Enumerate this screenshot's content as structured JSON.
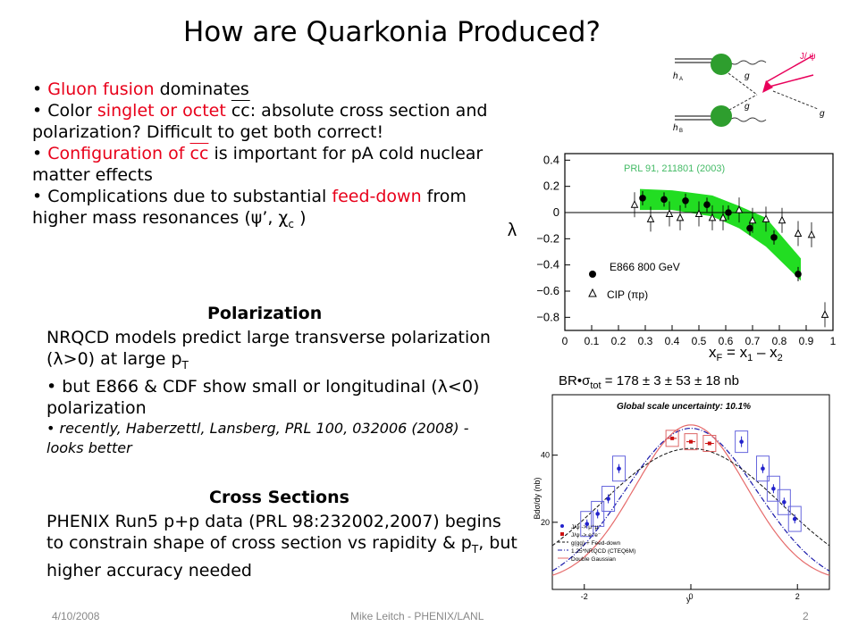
{
  "title": "How are Quarkonia Produced?",
  "bullets": {
    "b1": {
      "hl": "Gluon fusion",
      "rest": " dominates"
    },
    "b2": {
      "pre": "Color ",
      "hl": "singlet or octet",
      "cc": "cc",
      "rest": ": absolute cross section and polarization? Difficult to get both correct!"
    },
    "b3": {
      "hl": "Configuration of ",
      "cc": "cc",
      "rest": " is important for pA cold nuclear matter effects"
    },
    "b4": {
      "pre": "Complications due to substantial ",
      "hl": "feed-down",
      "rest": " from higher mass resonances (",
      "psi": "ψ’,  χ",
      "chi_sub": "c",
      "close": " )"
    }
  },
  "polarization": {
    "heading": "Polarization",
    "line1a": "NRQCD models predict large transverse polarization (",
    "lambda_gt": "λ>0) at large p",
    "sub_t": "T",
    "bullet2a": "but E866 & CDF show small or longitudinal (",
    "lambda_lt": "λ<0) polarization",
    "bullet3": "recently, Haberzettl, Lansberg, PRL 100, 032006 (2008)  - looks better"
  },
  "cross": {
    "heading": "Cross Sections",
    "text_a": "PHENIX Run5 p+p data (PRL 98:232002,2007) begins to constrain shape of cross section vs rapidity & p",
    "sub_t": "T",
    "text_b": ", but higher accuracy needed"
  },
  "footer": {
    "date": "4/10/2008",
    "author": "Mike Leitch - PHENIX/LANL",
    "page": "2"
  },
  "diagram": {
    "ha": "h",
    "ha_sub": "A",
    "hb": "h",
    "hb_sub": "B",
    "g": "g",
    "jpsi": "J/ ψ"
  },
  "chart_top": {
    "ref": "PRL 91, 211801 (2003)",
    "legend1": "E866 800 GeV",
    "legend2": "CIP (πp)",
    "ylabel": "λ",
    "xlabel": "x",
    "xlabel_sub": "F",
    "xlabel_eq": " = x",
    "x1_sub": "1",
    "xlabel_minus": " – x",
    "x2_sub": "2"
  },
  "chart_data": [
    {
      "type": "scatter",
      "xlim": [
        0,
        1
      ],
      "ylim": [
        -0.9,
        0.45
      ],
      "x_ticks": [
        "0",
        "0.1",
        "0.2",
        "0.3",
        "0.4",
        "0.5",
        "0.6",
        "0.7",
        "0.8",
        "0.9",
        "1"
      ],
      "y_ticks": [
        "0.4",
        "0.2",
        "0",
        "−0.2",
        "−0.4",
        "−0.6",
        "−0.8"
      ],
      "y_tick_values": [
        0.4,
        0.2,
        0,
        -0.2,
        -0.4,
        -0.6,
        -0.8
      ],
      "series": [
        {
          "name": "E866 800 GeV",
          "x": [
            0.29,
            0.37,
            0.45,
            0.53,
            0.61,
            0.69,
            0.78,
            0.87
          ],
          "y": [
            0.11,
            0.1,
            0.09,
            0.06,
            0.0,
            -0.12,
            -0.19,
            -0.47
          ]
        },
        {
          "name": "CIP (πp)",
          "x": [
            0.26,
            0.32,
            0.39,
            0.43,
            0.5,
            0.55,
            0.59,
            0.65,
            0.7,
            0.75,
            0.81,
            0.87,
            0.92,
            0.97
          ],
          "y": [
            0.06,
            -0.05,
            -0.01,
            -0.04,
            -0.01,
            -0.04,
            -0.04,
            0.02,
            -0.06,
            -0.05,
            -0.06,
            -0.16,
            -0.17,
            -0.78
          ]
        }
      ],
      "band_upper": [
        [
          0.28,
          0.18
        ],
        [
          0.4,
          0.17
        ],
        [
          0.55,
          0.13
        ],
        [
          0.65,
          0.05
        ],
        [
          0.75,
          -0.04
        ],
        [
          0.88,
          -0.35
        ]
      ],
      "band_lower": [
        [
          0.28,
          0.02
        ],
        [
          0.4,
          0.02
        ],
        [
          0.55,
          -0.03
        ],
        [
          0.65,
          -0.12
        ],
        [
          0.75,
          -0.26
        ],
        [
          0.88,
          -0.52
        ]
      ]
    },
    {
      "type": "scatter",
      "title": "Global scale uncertainty: 10.1%",
      "header": "BR•σ",
      "header_sub": "tot",
      "header_value": " = 178 ± 3 ± 53 ± 18 nb",
      "ylabel": "Bdσ/dy (nb)",
      "xlabel": "y",
      "xlim": [
        -2.6,
        2.6
      ],
      "ylim": [
        0,
        58
      ],
      "x_ticks": [
        "-2",
        "0",
        "2"
      ],
      "x_tick_values": [
        -2,
        0,
        2
      ],
      "y_ticks": [
        "20",
        "40"
      ],
      "y_tick_values": [
        20,
        40
      ],
      "series": [
        {
          "name": "J/ψ -> μ⁺μ⁻",
          "x": [
            -1.95,
            -1.75,
            -1.55,
            -1.35,
            1.35,
            1.55,
            1.75,
            1.95
          ],
          "y": [
            19.5,
            22.5,
            27,
            36,
            36,
            30,
            26,
            21
          ]
        },
        {
          "name": "J/ψ -> e⁺e⁻",
          "x": [
            -0.35,
            0,
            0.35
          ],
          "y": [
            45,
            44,
            43.5
          ]
        },
        {
          "name": "J/ψ forward",
          "x": [
            0.95
          ],
          "y": [
            44
          ]
        }
      ],
      "legend": [
        "J/ψ -> μ⁺μ⁻",
        "J/ψ -> e⁺e⁻",
        "g(gg) + Feed-down",
        "1.25*NRQCD (CTEQ6M)",
        "Double Gaussian"
      ],
      "colors": {
        "muon": "#2222cc",
        "electron": "#cc1111",
        "nrqcd": "#1a1aaa",
        "gauss": "#e66b6b",
        "feed": "#111111"
      }
    }
  ]
}
